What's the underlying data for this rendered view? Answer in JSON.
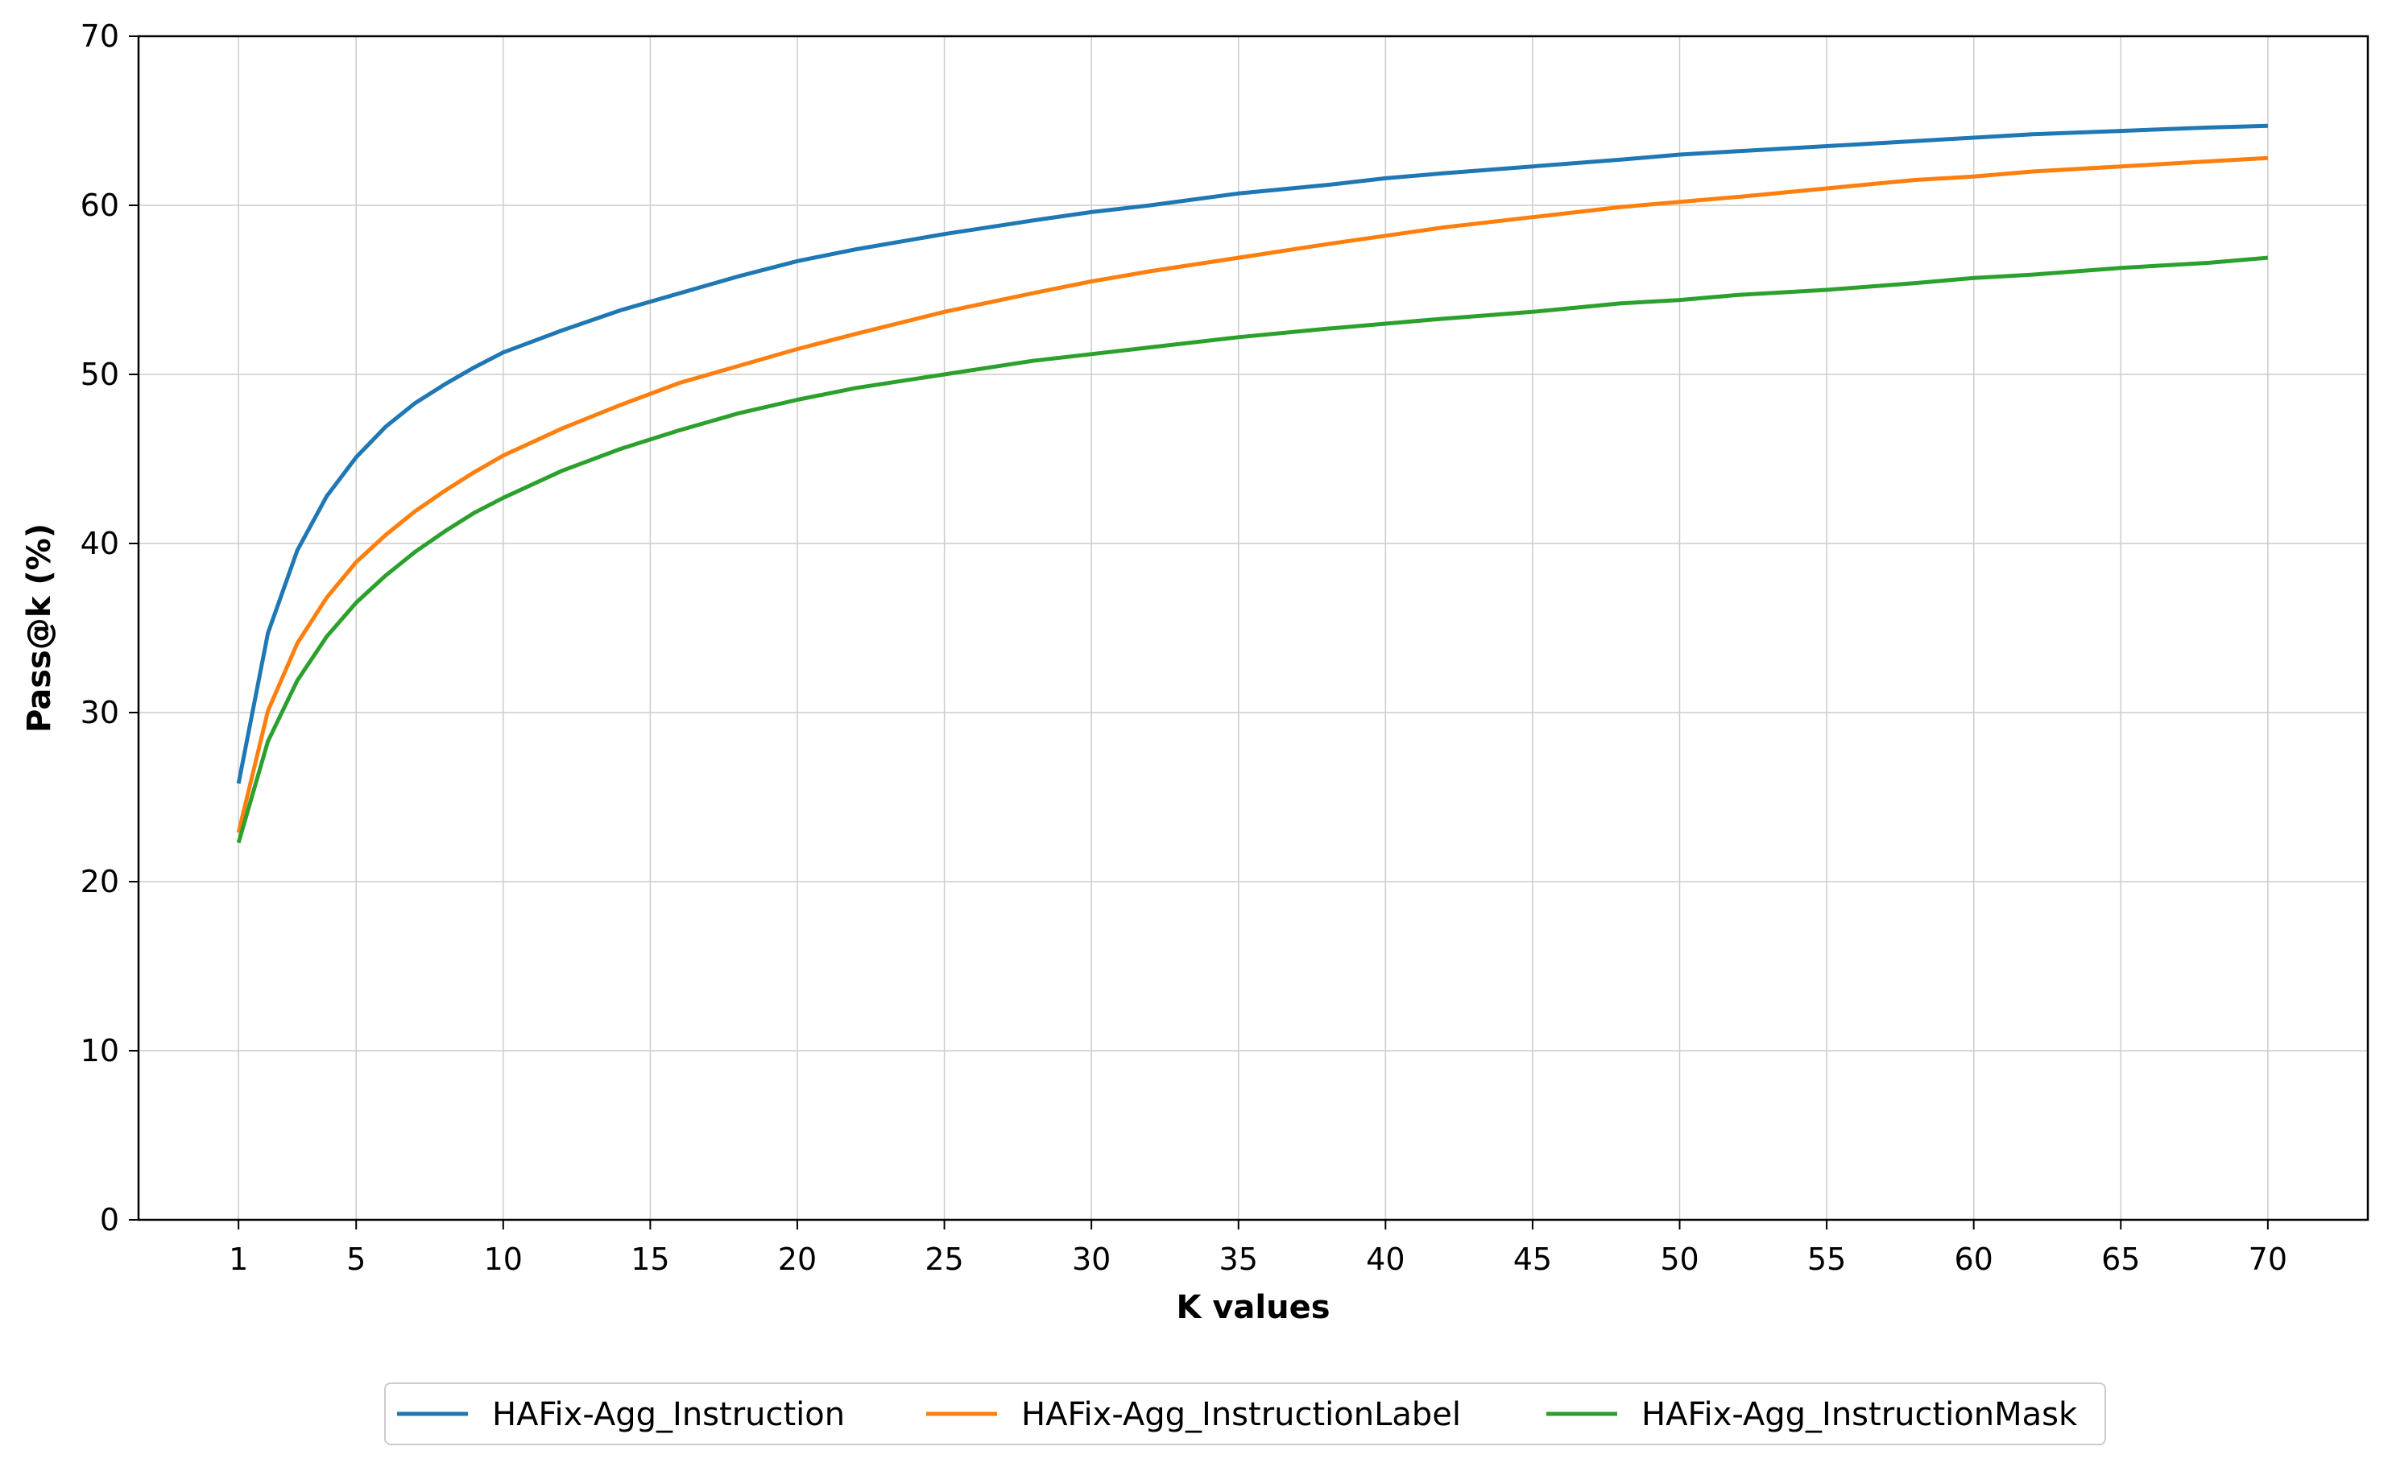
{
  "chart_data": {
    "type": "line",
    "title": "",
    "xlabel": "K values",
    "ylabel": "Pass@k (%)",
    "xlim": [
      -2.4,
      73.4
    ],
    "ylim": [
      0,
      70
    ],
    "xticks": [
      1,
      5,
      10,
      15,
      20,
      25,
      30,
      35,
      40,
      45,
      50,
      55,
      60,
      65,
      70
    ],
    "yticks": [
      0,
      10,
      20,
      30,
      40,
      50,
      60,
      70
    ],
    "grid": true,
    "legend_position": "bottom-center",
    "x": [
      1,
      2,
      3,
      4,
      5,
      6,
      7,
      8,
      9,
      10,
      12,
      14,
      16,
      18,
      20,
      22,
      25,
      28,
      30,
      32,
      35,
      38,
      40,
      42,
      45,
      48,
      50,
      52,
      55,
      58,
      60,
      62,
      65,
      68,
      70
    ],
    "series": [
      {
        "name": "HAFix-Agg_Instruction",
        "color": "#1f77b4",
        "values": [
          25.8,
          34.7,
          39.6,
          42.8,
          45.1,
          46.9,
          48.3,
          49.4,
          50.4,
          51.3,
          52.6,
          53.8,
          54.8,
          55.8,
          56.7,
          57.4,
          58.3,
          59.1,
          59.6,
          60.0,
          60.7,
          61.2,
          61.6,
          61.9,
          62.3,
          62.7,
          63.0,
          63.2,
          63.5,
          63.8,
          64.0,
          64.2,
          64.4,
          64.6,
          64.7
        ]
      },
      {
        "name": "HAFix-Agg_InstructionLabel",
        "color": "#ff7f0e",
        "values": [
          22.9,
          30.1,
          34.1,
          36.8,
          38.9,
          40.5,
          41.9,
          43.1,
          44.2,
          45.2,
          46.8,
          48.2,
          49.5,
          50.5,
          51.5,
          52.4,
          53.7,
          54.8,
          55.5,
          56.1,
          56.9,
          57.7,
          58.2,
          58.7,
          59.3,
          59.9,
          60.2,
          60.5,
          61.0,
          61.5,
          61.7,
          62.0,
          62.3,
          62.6,
          62.8
        ]
      },
      {
        "name": "HAFix-Agg_InstructionMask",
        "color": "#2ca02c",
        "values": [
          22.3,
          28.3,
          31.9,
          34.5,
          36.5,
          38.1,
          39.5,
          40.7,
          41.8,
          42.7,
          44.3,
          45.6,
          46.7,
          47.7,
          48.5,
          49.2,
          50.0,
          50.8,
          51.2,
          51.6,
          52.2,
          52.7,
          53.0,
          53.3,
          53.7,
          54.2,
          54.4,
          54.7,
          55.0,
          55.4,
          55.7,
          55.9,
          56.3,
          56.6,
          56.9
        ]
      }
    ]
  }
}
